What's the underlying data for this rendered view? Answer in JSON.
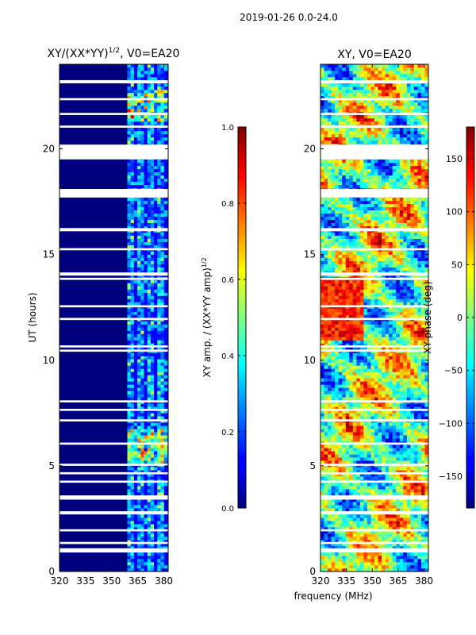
{
  "suptitle": "2019-01-26 0.0-24.0",
  "xlabel_shared": "frequency (MHz)",
  "colors": {
    "flag": "#ffffff",
    "frame": "#000000",
    "background": "#ffffff"
  },
  "chart_data": [
    {
      "type": "heatmap",
      "title": "XY/(XX*YY)",
      "title_superscript": "1/2",
      "title_suffix": ", V0=EA20",
      "xlabel": "",
      "ylabel": "UT (hours)",
      "xlim": [
        320,
        382.5
      ],
      "ylim": [
        0,
        24
      ],
      "xticks": [
        "320",
        "335",
        "350",
        "365",
        "380"
      ],
      "xtick_values": [
        320,
        335,
        350,
        365,
        380
      ],
      "yticks": [
        "0",
        "5",
        "10",
        "15",
        "20"
      ],
      "ytick_values": [
        0,
        5,
        10,
        15,
        20
      ],
      "colormap": "jet",
      "colorbar": {
        "label": "XY amp. / (XX*YY amp)",
        "label_superscript": "1/2",
        "range": [
          0,
          1
        ],
        "ticks": [
          "0.0",
          "0.2",
          "0.4",
          "0.6",
          "0.8",
          "1.0"
        ],
        "tick_values": [
          0.0,
          0.2,
          0.4,
          0.6,
          0.8,
          1.0
        ]
      },
      "active_band_mhz": [
        359,
        382
      ],
      "flagged_ut_hours": [
        [
          23.1,
          23.25
        ],
        [
          22.3,
          22.4
        ],
        [
          21.6,
          21.7
        ],
        [
          21.0,
          21.1
        ],
        [
          19.5,
          20.2
        ],
        [
          18.1,
          17.7
        ],
        [
          17.7,
          18.1
        ],
        [
          16.1,
          16.25
        ],
        [
          15.2,
          15.3
        ],
        [
          14.0,
          14.15
        ],
        [
          13.8,
          13.9
        ],
        [
          12.5,
          12.6
        ],
        [
          11.9,
          12.0
        ],
        [
          10.6,
          10.7
        ],
        [
          10.4,
          10.5
        ],
        [
          8.0,
          8.1
        ],
        [
          7.6,
          7.7
        ],
        [
          7.1,
          7.2
        ],
        [
          6.0,
          6.1
        ],
        [
          5.0,
          5.1
        ],
        [
          4.6,
          4.7
        ],
        [
          4.2,
          4.3
        ],
        [
          3.4,
          3.6
        ],
        [
          2.7,
          2.85
        ],
        [
          1.9,
          2.0
        ],
        [
          1.3,
          1.4
        ],
        [
          0.9,
          1.1
        ]
      ]
    },
    {
      "type": "heatmap",
      "title": "XY, V0=EA20",
      "xlabel": "",
      "ylabel": "",
      "xlim": [
        320,
        382.5
      ],
      "ylim": [
        0,
        24
      ],
      "xticks": [
        "320",
        "335",
        "350",
        "365",
        "380"
      ],
      "xtick_values": [
        320,
        335,
        350,
        365,
        380
      ],
      "yticks": [
        "0",
        "5",
        "10",
        "15",
        "20"
      ],
      "ytick_values": [
        0,
        5,
        10,
        15,
        20
      ],
      "colormap": "jet",
      "colorbar": {
        "label": "XY phase (deg)",
        "range": [
          -180,
          180
        ],
        "ticks": [
          "−150",
          "−100",
          "−50",
          "0",
          "50",
          "100",
          "150"
        ],
        "tick_values": [
          -150,
          -100,
          -50,
          0,
          50,
          100,
          150
        ]
      },
      "flagged_ut_hours": [
        [
          23.1,
          23.25
        ],
        [
          22.3,
          22.4
        ],
        [
          21.6,
          21.7
        ],
        [
          21.0,
          21.1
        ],
        [
          19.5,
          20.2
        ],
        [
          17.7,
          18.1
        ],
        [
          16.1,
          16.25
        ],
        [
          15.2,
          15.3
        ],
        [
          14.0,
          14.15
        ],
        [
          13.8,
          13.9
        ],
        [
          12.5,
          12.6
        ],
        [
          11.9,
          12.0
        ],
        [
          10.6,
          10.7
        ],
        [
          10.4,
          10.5
        ],
        [
          8.0,
          8.1
        ],
        [
          7.6,
          7.7
        ],
        [
          7.1,
          7.2
        ],
        [
          6.0,
          6.1
        ],
        [
          5.0,
          5.1
        ],
        [
          4.6,
          4.7
        ],
        [
          4.2,
          4.3
        ],
        [
          3.4,
          3.6
        ],
        [
          2.7,
          2.85
        ],
        [
          1.9,
          2.0
        ],
        [
          1.3,
          1.4
        ],
        [
          0.9,
          1.1
        ]
      ]
    }
  ]
}
